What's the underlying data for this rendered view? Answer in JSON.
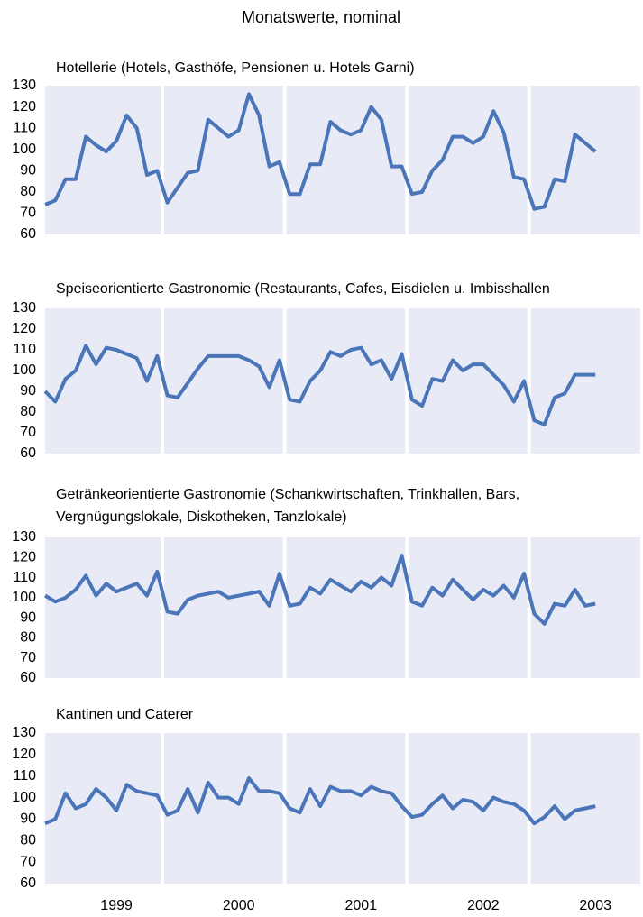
{
  "title": "Monatswerte, nominal",
  "chart_data": [
    {
      "type": "line",
      "title": [
        "Hotellerie (Hotels, Gasthöfe, Pensionen u. Hotels Garni)"
      ],
      "color": "#4a76b9",
      "ylim": [
        60,
        130
      ],
      "yticks": [
        60,
        70,
        80,
        90,
        100,
        110,
        120,
        130
      ],
      "values": [
        74,
        76,
        86,
        86,
        106,
        102,
        99,
        104,
        116,
        110,
        88,
        90,
        75,
        82,
        89,
        90,
        114,
        110,
        106,
        109,
        126,
        116,
        92,
        94,
        79,
        79,
        93,
        93,
        113,
        109,
        107,
        109,
        120,
        114,
        92,
        92,
        79,
        80,
        90,
        95,
        106,
        106,
        103,
        106,
        118,
        108,
        87,
        86,
        72,
        73,
        86,
        85,
        107,
        103,
        99
      ]
    },
    {
      "type": "line",
      "title": [
        "Speiseorientierte Gastronomie (Restaurants, Cafes, Eisdielen u. Imbisshallen"
      ],
      "color": "#4a76b9",
      "ylim": [
        60,
        130
      ],
      "yticks": [
        60,
        70,
        80,
        90,
        100,
        110,
        120,
        130
      ],
      "values": [
        90,
        85,
        96,
        100,
        112,
        103,
        111,
        110,
        108,
        106,
        95,
        107,
        88,
        87,
        94,
        101,
        107,
        107,
        107,
        107,
        105,
        102,
        92,
        105,
        86,
        85,
        95,
        100,
        109,
        107,
        110,
        111,
        103,
        105,
        96,
        108,
        86,
        83,
        96,
        95,
        105,
        100,
        103,
        103,
        98,
        93,
        85,
        95,
        76,
        74,
        87,
        89,
        98,
        98,
        98
      ]
    },
    {
      "type": "line",
      "title": [
        "Getränkeorientierte Gastronomie (Schankwirtschaften, Trinkhallen, Bars,",
        "Vergnügungslokale, Diskotheken, Tanzlokale)"
      ],
      "color": "#4a76b9",
      "ylim": [
        60,
        130
      ],
      "yticks": [
        60,
        70,
        80,
        90,
        100,
        110,
        120,
        130
      ],
      "values": [
        101,
        98,
        100,
        104,
        111,
        101,
        107,
        103,
        105,
        107,
        101,
        113,
        93,
        92,
        99,
        101,
        102,
        103,
        100,
        101,
        102,
        103,
        96,
        112,
        96,
        97,
        105,
        102,
        109,
        106,
        103,
        108,
        105,
        110,
        106,
        121,
        98,
        96,
        105,
        101,
        109,
        104,
        99,
        104,
        101,
        106,
        100,
        112,
        92,
        87,
        97,
        96,
        104,
        96,
        97
      ]
    },
    {
      "type": "line",
      "title": [
        "Kantinen und Caterer"
      ],
      "color": "#4a76b9",
      "ylim": [
        60,
        130
      ],
      "yticks": [
        60,
        70,
        80,
        90,
        100,
        110,
        120,
        130
      ],
      "categories": [
        null,
        null,
        null,
        null,
        null,
        null,
        null,
        "1999",
        null,
        null,
        null,
        null,
        null,
        null,
        null,
        null,
        null,
        null,
        null,
        "2000",
        null,
        null,
        null,
        null,
        null,
        null,
        null,
        null,
        null,
        null,
        null,
        "2001",
        null,
        null,
        null,
        null,
        null,
        null,
        null,
        null,
        null,
        null,
        null,
        "2002",
        null,
        null,
        null,
        null,
        null,
        null,
        null,
        null,
        null,
        null,
        "2003"
      ],
      "values": [
        88,
        90,
        102,
        95,
        97,
        104,
        100,
        94,
        106,
        103,
        102,
        101,
        92,
        94,
        104,
        93,
        107,
        100,
        100,
        97,
        109,
        103,
        103,
        102,
        95,
        93,
        104,
        96,
        105,
        103,
        103,
        101,
        105,
        103,
        102,
        96,
        91,
        92,
        97,
        101,
        95,
        99,
        98,
        94,
        100,
        98,
        97,
        94,
        88,
        91,
        96,
        90,
        94,
        95,
        96
      ]
    }
  ]
}
